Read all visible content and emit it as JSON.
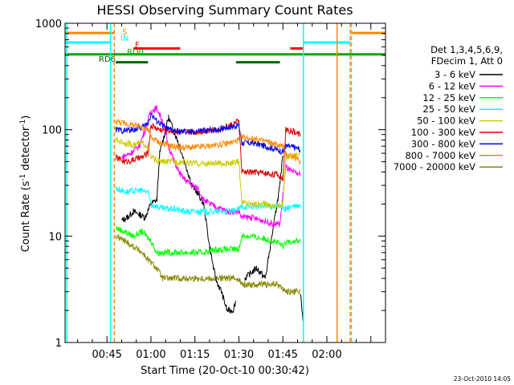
{
  "chart_data": {
    "type": "line",
    "title": "HESSI Observing Summary Count Rates",
    "xlabel": "Start Time (20-Oct-10 00:30:42)",
    "ylabel_main": "Count Rate (s",
    "ylabel_sup1": "-1",
    "ylabel_mid": " detector",
    "ylabel_sup2": "-1",
    "ylabel_end": ")",
    "yscale": "log",
    "ylim": [
      1,
      1000
    ],
    "xlim_min": [
      30.7,
      140
    ],
    "x_unit": "minutes after 00:00 UT",
    "x_ticks": [
      {
        "t": 45,
        "label": "00:45"
      },
      {
        "t": 60,
        "label": "01:00"
      },
      {
        "t": 75,
        "label": "01:15"
      },
      {
        "t": 90,
        "label": "01:30"
      },
      {
        "t": 105,
        "label": "01:45"
      },
      {
        "t": 120,
        "label": "02:00"
      }
    ],
    "y_ticks": [
      {
        "v": 1,
        "label": "1"
      },
      {
        "v": 10,
        "label": "10"
      },
      {
        "v": 100,
        "label": "100"
      },
      {
        "v": 1000,
        "label": "1000"
      }
    ],
    "legend_header": [
      "Det 1,3,4,5,6,9,",
      "FDecim 1, Att 0"
    ],
    "legend_position": "right",
    "series": [
      {
        "name": "3 - 6 keV",
        "color": "#000000",
        "points": [
          [
            30.7,
            null
          ],
          [
            47,
            null
          ],
          [
            50,
            14
          ],
          [
            52,
            15
          ],
          [
            54,
            17
          ],
          [
            56,
            16
          ],
          [
            58,
            15
          ],
          [
            60,
            20
          ],
          [
            62,
            22
          ],
          [
            63,
            60
          ],
          [
            66,
            130
          ],
          [
            69,
            80
          ],
          [
            72,
            45
          ],
          [
            74,
            30
          ],
          [
            76,
            25
          ],
          [
            78,
            20
          ],
          [
            80,
            8
          ],
          [
            82,
            4
          ],
          [
            84,
            3
          ],
          [
            86,
            2
          ],
          [
            88,
            2
          ],
          [
            89,
            2.5
          ],
          [
            90,
            null
          ],
          [
            92,
            4
          ],
          [
            96,
            5
          ],
          [
            99,
            4
          ],
          [
            101,
            9
          ],
          [
            103,
            20
          ],
          [
            104,
            30
          ],
          [
            105,
            60
          ],
          [
            106,
            null
          ],
          [
            111,
            3
          ],
          [
            112,
            1.5
          ],
          [
            113,
            null
          ]
        ]
      },
      {
        "name": "6 - 12 keV",
        "color": "#ff00ff",
        "points": [
          [
            30.7,
            null
          ],
          [
            47,
            null
          ],
          [
            50,
            55
          ],
          [
            53,
            60
          ],
          [
            56,
            70
          ],
          [
            58,
            100
          ],
          [
            60,
            150
          ],
          [
            62,
            160
          ],
          [
            64,
            120
          ],
          [
            66,
            70
          ],
          [
            68,
            50
          ],
          [
            70,
            38
          ],
          [
            72,
            33
          ],
          [
            74,
            30
          ],
          [
            76,
            28
          ],
          [
            78,
            22
          ],
          [
            80,
            20
          ],
          [
            82,
            19
          ],
          [
            84,
            18
          ],
          [
            86,
            17
          ],
          [
            88,
            17
          ],
          [
            90,
            17
          ],
          [
            91,
            15
          ],
          [
            94,
            15
          ],
          [
            98,
            14
          ],
          [
            102,
            13
          ],
          [
            104,
            13
          ],
          [
            106,
            45
          ],
          [
            108,
            40
          ],
          [
            111,
            38
          ],
          [
            112,
            null
          ]
        ]
      },
      {
        "name": "12 - 25 keV",
        "color": "#00ff00",
        "points": [
          [
            30.7,
            null
          ],
          [
            47,
            null
          ],
          [
            48,
            12
          ],
          [
            51,
            11
          ],
          [
            54,
            10
          ],
          [
            57,
            11
          ],
          [
            60,
            9
          ],
          [
            62,
            7
          ],
          [
            66,
            7
          ],
          [
            70,
            7
          ],
          [
            74,
            7
          ],
          [
            78,
            7
          ],
          [
            82,
            7.5
          ],
          [
            86,
            7.5
          ],
          [
            90,
            7.5
          ],
          [
            91,
            10
          ],
          [
            94,
            10
          ],
          [
            98,
            9.5
          ],
          [
            102,
            9
          ],
          [
            105,
            8
          ],
          [
            107,
            9
          ],
          [
            111,
            9
          ],
          [
            112,
            null
          ]
        ]
      },
      {
        "name": "25 - 50 keV",
        "color": "#00ffff",
        "points": [
          [
            30.7,
            null
          ],
          [
            47,
            null
          ],
          [
            48,
            28
          ],
          [
            52,
            26
          ],
          [
            56,
            27
          ],
          [
            59,
            26
          ],
          [
            60,
            20
          ],
          [
            64,
            18
          ],
          [
            68,
            18
          ],
          [
            72,
            17
          ],
          [
            76,
            17
          ],
          [
            80,
            17
          ],
          [
            84,
            17
          ],
          [
            88,
            17
          ],
          [
            90,
            18
          ],
          [
            91,
            19
          ],
          [
            95,
            19
          ],
          [
            99,
            19
          ],
          [
            103,
            19
          ],
          [
            106,
            18
          ],
          [
            108,
            19
          ],
          [
            111,
            19
          ],
          [
            112,
            null
          ]
        ]
      },
      {
        "name": "50 - 100 keV",
        "color": "#cccc00",
        "points": [
          [
            30.7,
            null
          ],
          [
            47,
            null
          ],
          [
            48,
            80
          ],
          [
            51,
            75
          ],
          [
            54,
            72
          ],
          [
            57,
            75
          ],
          [
            59,
            70
          ],
          [
            60,
            55
          ],
          [
            63,
            50
          ],
          [
            67,
            50
          ],
          [
            71,
            50
          ],
          [
            75,
            48
          ],
          [
            79,
            48
          ],
          [
            83,
            48
          ],
          [
            87,
            48
          ],
          [
            90,
            50
          ],
          [
            91,
            21
          ],
          [
            95,
            20
          ],
          [
            99,
            20
          ],
          [
            103,
            19
          ],
          [
            105,
            20
          ],
          [
            106,
            55
          ],
          [
            109,
            58
          ],
          [
            111,
            60
          ],
          [
            112,
            null
          ]
        ]
      },
      {
        "name": "100 - 300 keV",
        "color": "#dd0000",
        "points": [
          [
            30.7,
            null
          ],
          [
            47,
            null
          ],
          [
            48,
            55
          ],
          [
            51,
            50
          ],
          [
            54,
            52
          ],
          [
            57,
            55
          ],
          [
            59,
            60
          ],
          [
            60,
            110
          ],
          [
            63,
            100
          ],
          [
            67,
            98
          ],
          [
            71,
            95
          ],
          [
            75,
            95
          ],
          [
            79,
            98
          ],
          [
            83,
            100
          ],
          [
            87,
            110
          ],
          [
            90,
            120
          ],
          [
            91,
            40
          ],
          [
            95,
            40
          ],
          [
            99,
            39
          ],
          [
            103,
            38
          ],
          [
            105,
            35
          ],
          [
            106,
            100
          ],
          [
            109,
            95
          ],
          [
            111,
            90
          ],
          [
            112,
            null
          ]
        ]
      },
      {
        "name": "300 - 800 keV",
        "color": "#0000ee",
        "points": [
          [
            30.7,
            null
          ],
          [
            47,
            null
          ],
          [
            48,
            100
          ],
          [
            51,
            98
          ],
          [
            54,
            100
          ],
          [
            57,
            105
          ],
          [
            59,
            115
          ],
          [
            60,
            140
          ],
          [
            62,
            120
          ],
          [
            66,
            100
          ],
          [
            70,
            95
          ],
          [
            74,
            95
          ],
          [
            78,
            98
          ],
          [
            82,
            100
          ],
          [
            86,
            105
          ],
          [
            90,
            110
          ],
          [
            91,
            75
          ],
          [
            95,
            75
          ],
          [
            99,
            70
          ],
          [
            103,
            65
          ],
          [
            105,
            62
          ],
          [
            106,
            70
          ],
          [
            109,
            68
          ],
          [
            111,
            65
          ],
          [
            112,
            null
          ]
        ]
      },
      {
        "name": "800 - 7000 keV",
        "color": "#ff8800",
        "points": [
          [
            30.7,
            null
          ],
          [
            47,
            null
          ],
          [
            48,
            120
          ],
          [
            51,
            115
          ],
          [
            54,
            110
          ],
          [
            57,
            105
          ],
          [
            59,
            100
          ],
          [
            60,
            85
          ],
          [
            63,
            75
          ],
          [
            67,
            70
          ],
          [
            71,
            68
          ],
          [
            75,
            68
          ],
          [
            79,
            70
          ],
          [
            83,
            72
          ],
          [
            87,
            75
          ],
          [
            90,
            80
          ],
          [
            91,
            85
          ],
          [
            95,
            82
          ],
          [
            99,
            78
          ],
          [
            103,
            72
          ],
          [
            105,
            70
          ],
          [
            106,
            60
          ],
          [
            109,
            55
          ],
          [
            111,
            50
          ],
          [
            112,
            null
          ]
        ]
      },
      {
        "name": "7000 - 20000 keV",
        "color": "#888800",
        "points": [
          [
            30.7,
            null
          ],
          [
            47,
            null
          ],
          [
            48,
            10
          ],
          [
            51,
            9
          ],
          [
            54,
            8
          ],
          [
            57,
            7
          ],
          [
            59,
            6
          ],
          [
            62,
            5
          ],
          [
            64,
            4
          ],
          [
            68,
            4
          ],
          [
            72,
            4
          ],
          [
            76,
            4
          ],
          [
            80,
            4
          ],
          [
            84,
            4
          ],
          [
            88,
            4
          ],
          [
            90,
            4
          ],
          [
            91,
            3.5
          ],
          [
            95,
            3.5
          ],
          [
            99,
            3.5
          ],
          [
            103,
            3.5
          ],
          [
            105,
            3.2
          ],
          [
            106,
            3
          ],
          [
            109,
            3
          ],
          [
            111,
            3
          ],
          [
            112,
            null
          ]
        ]
      }
    ],
    "flag_bars": [
      {
        "name": "S",
        "color": "#ff8800",
        "y": 810,
        "spans": [
          [
            30.7,
            47.5
          ],
          [
            128,
            140
          ]
        ]
      },
      {
        "name": "IN",
        "color": "#00ffff",
        "y": 660,
        "spans": [
          [
            30.7,
            46
          ],
          [
            112,
            128
          ]
        ]
      },
      {
        "name": "F",
        "color": "#ff0000",
        "y": 580,
        "spans": [
          [
            54,
            70
          ],
          [
            107.5,
            112
          ]
        ]
      },
      {
        "name": "RD0",
        "color": "#00aa00",
        "y": 510,
        "spans": [
          [
            30.7,
            140
          ]
        ]
      },
      {
        "name": "RD6",
        "color": "#006600",
        "y": 430,
        "spans": [
          [
            48,
            59
          ],
          [
            89,
            104
          ]
        ]
      }
    ],
    "vertical_markers": [
      {
        "t": 31.3,
        "color": "#00ffff",
        "style": "solid"
      },
      {
        "t": 46.2,
        "color": "#00ffff",
        "style": "solid"
      },
      {
        "t": 47.5,
        "color": "#ff8800",
        "style": "dashed"
      },
      {
        "t": 112,
        "color": "#00ffff",
        "style": "solid"
      },
      {
        "t": 123.5,
        "color": "#ff8800",
        "style": "solid"
      },
      {
        "t": 128,
        "color": "#ff8800",
        "style": "dashed"
      },
      {
        "t": 128.4,
        "color": "#00ffff",
        "style": "dashed"
      }
    ],
    "timestamp": "23-Oct-2010 14:05",
    "grid": false
  }
}
